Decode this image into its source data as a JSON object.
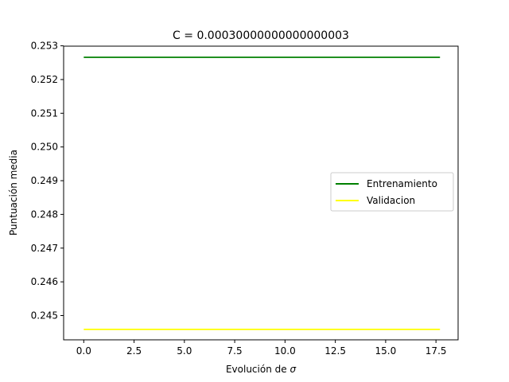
{
  "chart_data": {
    "type": "line",
    "title": "C = 0.00030000000000000003",
    "xlabel_text": "Evolución de ",
    "xlabel_symbol": "σ",
    "ylabel": "Puntuación media",
    "xlim": [
      -1.0,
      18.6
    ],
    "ylim": [
      0.24428,
      0.25299
    ],
    "xticks": [
      0.0,
      2.5,
      5.0,
      7.5,
      10.0,
      12.5,
      15.0,
      17.5
    ],
    "xtick_labels": [
      "0.0",
      "2.5",
      "5.0",
      "7.5",
      "10.0",
      "12.5",
      "15.0",
      "17.5"
    ],
    "yticks": [
      0.245,
      0.246,
      0.247,
      0.248,
      0.249,
      0.25,
      0.251,
      0.252,
      0.253
    ],
    "ytick_labels": [
      "0.245",
      "0.246",
      "0.247",
      "0.248",
      "0.249",
      "0.250",
      "0.251",
      "0.252",
      "0.253"
    ],
    "grid": false,
    "legend_position": "center-right",
    "series": [
      {
        "name": "Entrenamiento",
        "color": "#008000",
        "x": [
          0.0,
          17.7
        ],
        "y": [
          0.25266,
          0.25266
        ]
      },
      {
        "name": "Validacion",
        "color": "#ffff00",
        "x": [
          0.0,
          17.7
        ],
        "y": [
          0.24459,
          0.24459
        ]
      }
    ]
  }
}
